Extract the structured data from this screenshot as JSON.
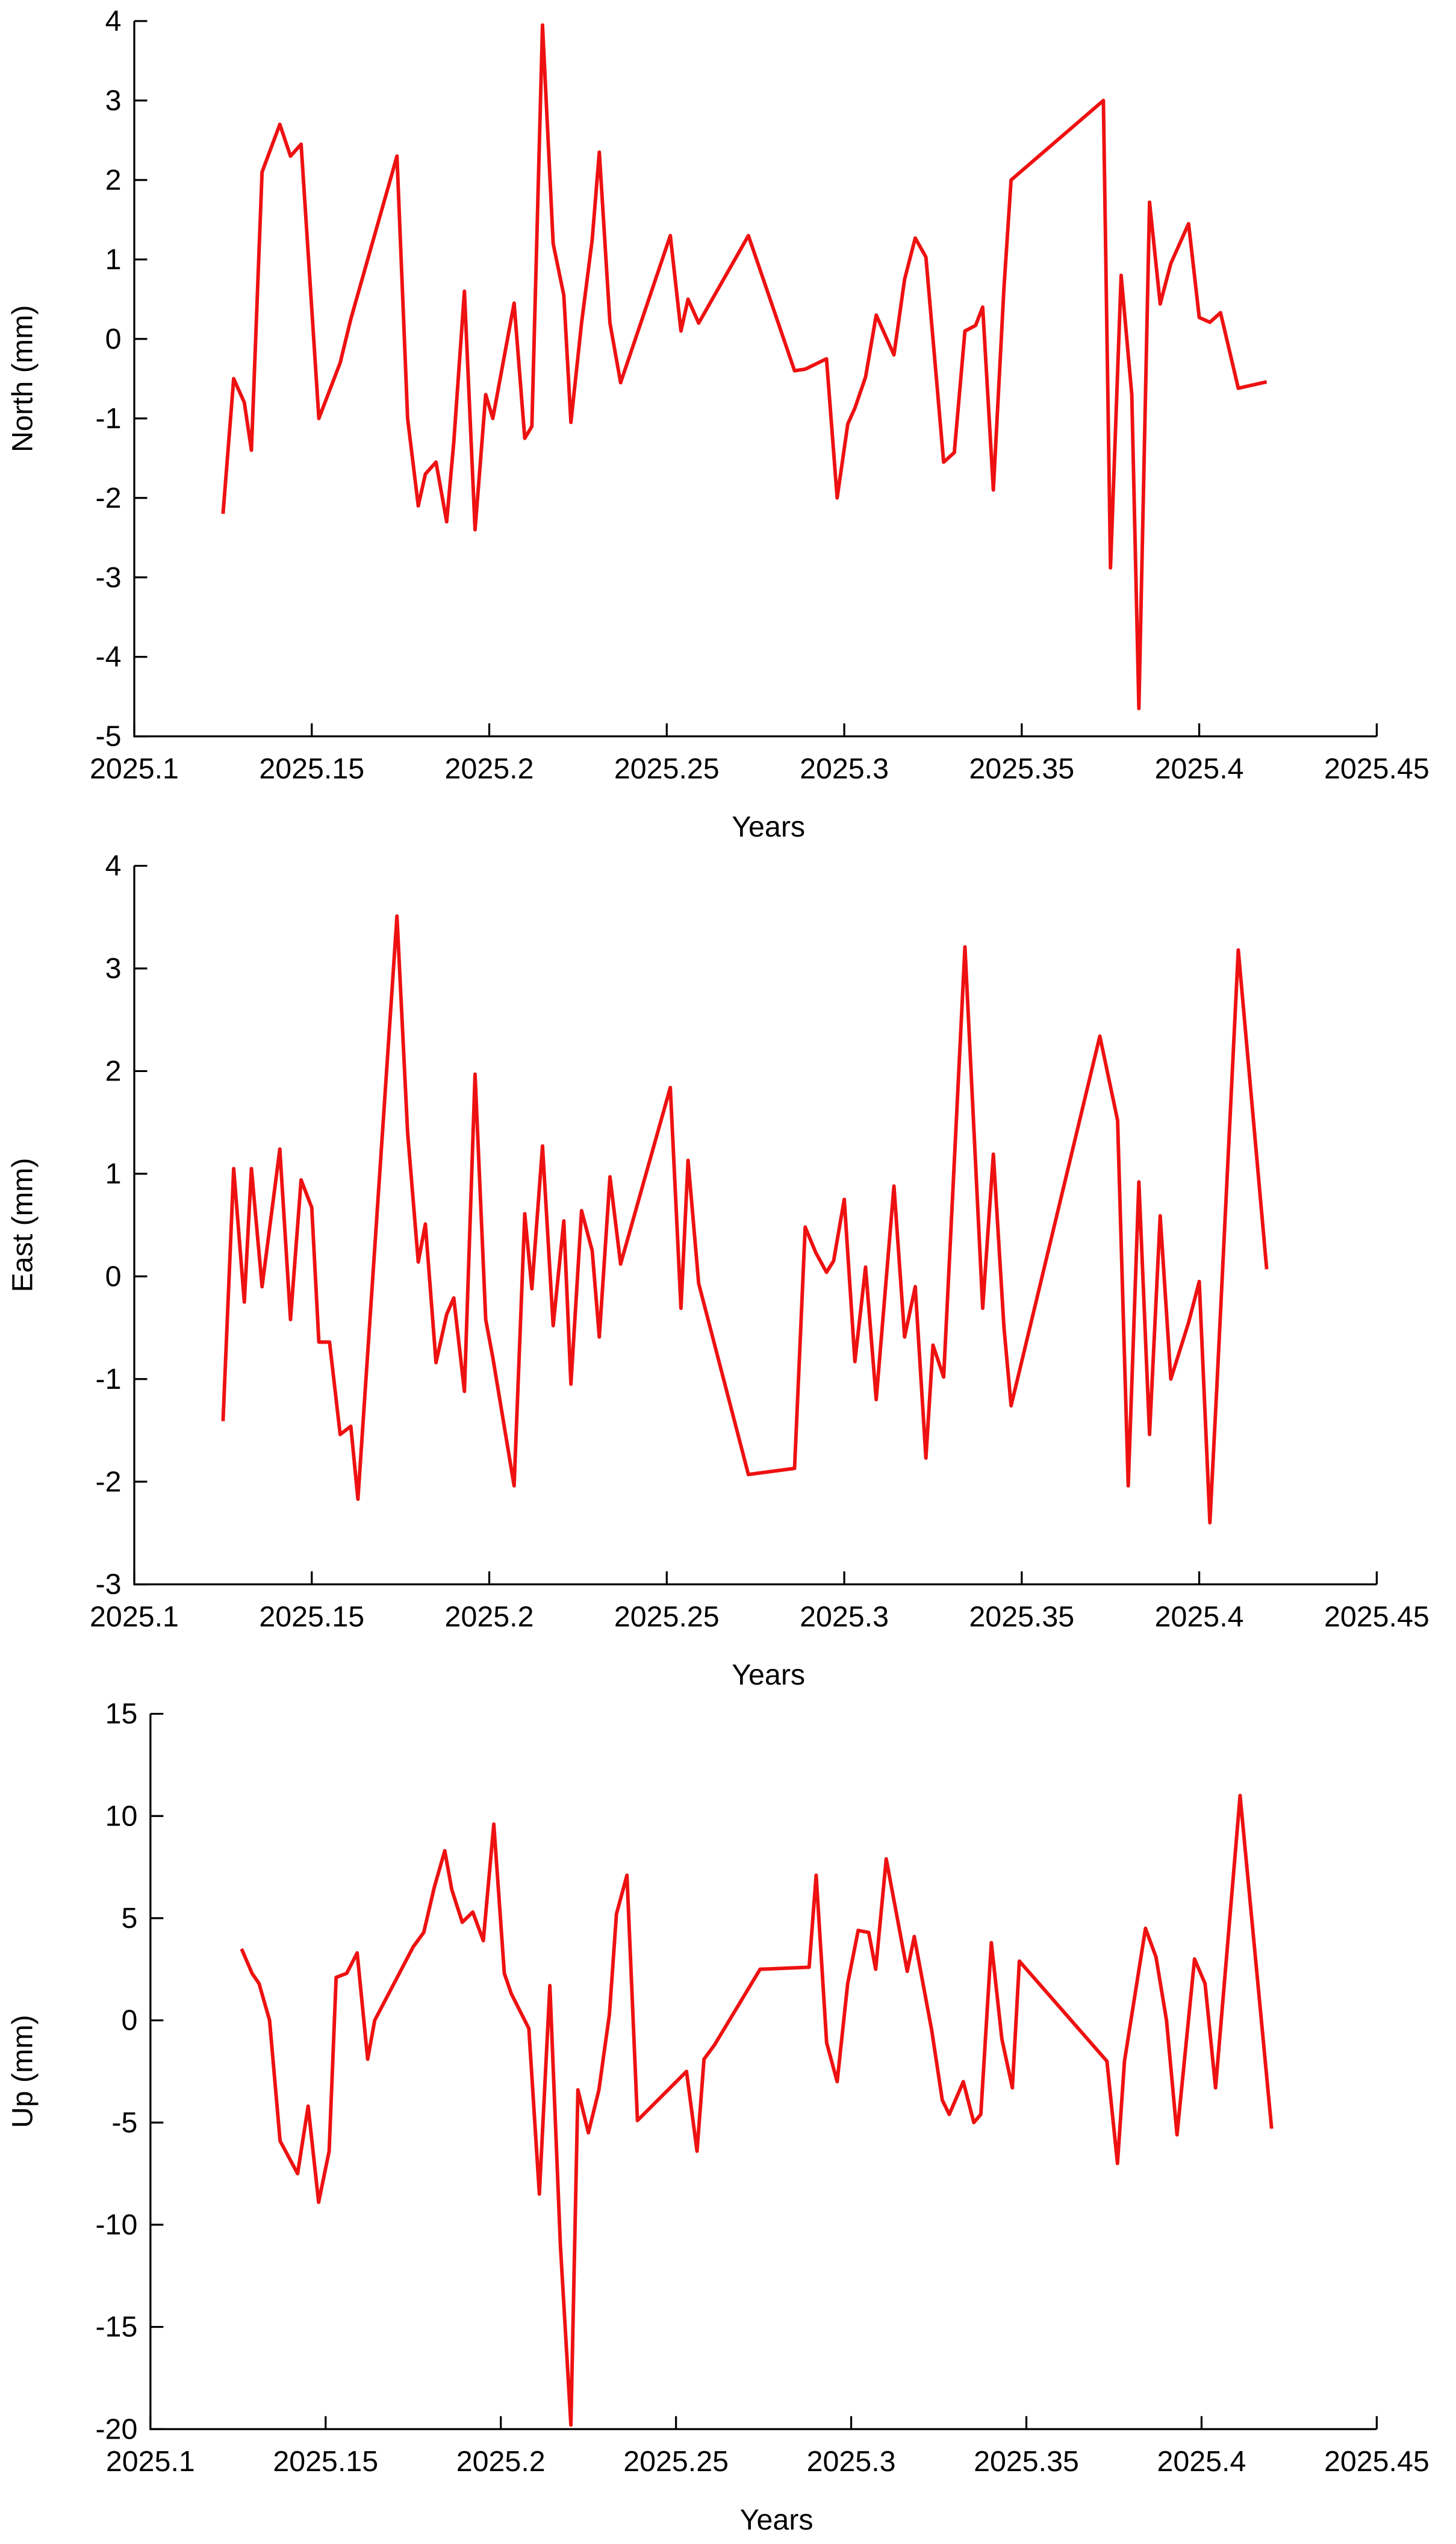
{
  "chart_data": [
    {
      "type": "line",
      "ylabel": "North (mm)",
      "xlabel": "Years",
      "color": "#ee1111",
      "xlim": [
        2025.1,
        2025.45
      ],
      "xticks": [
        2025.1,
        2025.15,
        2025.2,
        2025.25,
        2025.3,
        2025.35,
        2025.4,
        2025.45
      ],
      "ylim": [
        -5,
        4
      ],
      "yticks": [
        -5,
        -4,
        -3,
        -2,
        -1,
        0,
        1,
        2,
        3,
        4
      ],
      "x": [
        2025.125,
        2025.128,
        2025.131,
        2025.133,
        2025.136,
        2025.141,
        2025.144,
        2025.147,
        2025.152,
        2025.158,
        2025.161,
        2025.174,
        2025.177,
        2025.18,
        2025.182,
        2025.185,
        2025.188,
        2025.19,
        2025.193,
        2025.196,
        2025.199,
        2025.201,
        2025.207,
        2025.21,
        2025.212,
        2025.215,
        2025.218,
        2025.221,
        2025.223,
        2025.226,
        2025.229,
        2025.231,
        2025.234,
        2025.237,
        2025.251,
        2025.254,
        2025.256,
        2025.259,
        2025.273,
        2025.286,
        2025.289,
        2025.295,
        2025.298,
        2025.301,
        2025.303,
        2025.306,
        2025.309,
        2025.314,
        2025.317,
        2025.32,
        2025.323,
        2025.328,
        2025.331,
        2025.334,
        2025.337,
        2025.339,
        2025.342,
        2025.345,
        2025.347,
        2025.373,
        2025.375,
        2025.378,
        2025.381,
        2025.383,
        2025.386,
        2025.389,
        2025.392,
        2025.397,
        2025.4,
        2025.403,
        2025.406,
        2025.411,
        2025.419
      ],
      "values": [
        -2.2,
        -0.5,
        -0.8,
        -1.4,
        2.1,
        2.7,
        2.3,
        2.45,
        -1.0,
        -0.3,
        0.25,
        2.3,
        -1.0,
        -2.1,
        -1.7,
        -1.55,
        -2.3,
        -1.3,
        0.6,
        -2.4,
        -0.7,
        -1.0,
        0.45,
        -1.25,
        -1.1,
        3.95,
        1.2,
        0.55,
        -1.05,
        0.2,
        1.25,
        2.35,
        0.2,
        -0.55,
        1.3,
        0.1,
        0.5,
        0.2,
        1.3,
        -0.4,
        -0.38,
        -0.25,
        -2.0,
        -1.07,
        -0.87,
        -0.48,
        0.3,
        -0.2,
        0.75,
        1.27,
        1.03,
        -1.55,
        -1.43,
        0.1,
        0.17,
        0.4,
        -1.9,
        0.65,
        2.0,
        3.0,
        -2.88,
        0.8,
        -0.7,
        -4.65,
        1.72,
        0.44,
        0.95,
        1.45,
        0.27,
        0.21,
        0.33,
        -0.62,
        -0.54
      ]
    },
    {
      "type": "line",
      "ylabel": "East (mm)",
      "xlabel": "Years",
      "color": "#ee1111",
      "xlim": [
        2025.1,
        2025.45
      ],
      "xticks": [
        2025.1,
        2025.15,
        2025.2,
        2025.25,
        2025.3,
        2025.35,
        2025.4,
        2025.45
      ],
      "ylim": [
        -3,
        4
      ],
      "yticks": [
        -3,
        -2,
        -1,
        0,
        1,
        2,
        3,
        4
      ],
      "x": [
        2025.125,
        2025.128,
        2025.131,
        2025.133,
        2025.136,
        2025.141,
        2025.144,
        2025.147,
        2025.15,
        2025.152,
        2025.155,
        2025.158,
        2025.161,
        2025.163,
        2025.174,
        2025.177,
        2025.18,
        2025.182,
        2025.185,
        2025.188,
        2025.19,
        2025.193,
        2025.196,
        2025.199,
        2025.201,
        2025.207,
        2025.21,
        2025.212,
        2025.215,
        2025.218,
        2025.221,
        2025.223,
        2025.226,
        2025.229,
        2025.231,
        2025.234,
        2025.237,
        2025.251,
        2025.254,
        2025.256,
        2025.259,
        2025.273,
        2025.286,
        2025.289,
        2025.292,
        2025.295,
        2025.297,
        2025.3,
        2025.303,
        2025.306,
        2025.309,
        2025.314,
        2025.317,
        2025.32,
        2025.323,
        2025.325,
        2025.328,
        2025.334,
        2025.339,
        2025.342,
        2025.345,
        2025.347,
        2025.372,
        2025.377,
        2025.38,
        2025.383,
        2025.386,
        2025.389,
        2025.392,
        2025.397,
        2025.4,
        2025.403,
        2025.405,
        2025.411,
        2025.419
      ],
      "values": [
        -1.41,
        1.05,
        -0.25,
        1.05,
        -0.1,
        1.24,
        -0.42,
        0.94,
        0.67,
        -0.64,
        -0.64,
        -1.54,
        -1.46,
        -2.17,
        3.51,
        1.4,
        0.14,
        0.51,
        -0.84,
        -0.37,
        -0.21,
        -1.12,
        1.97,
        -0.42,
        -0.79,
        -2.04,
        0.61,
        -0.12,
        1.27,
        -0.48,
        0.54,
        -1.05,
        0.64,
        0.25,
        -0.59,
        0.97,
        0.12,
        1.84,
        -0.31,
        1.13,
        -0.07,
        -1.93,
        -1.87,
        0.48,
        0.23,
        0.04,
        0.15,
        0.75,
        -0.83,
        0.09,
        -1.2,
        0.88,
        -0.59,
        -0.1,
        -1.77,
        -0.67,
        -0.98,
        3.21,
        -0.31,
        1.19,
        -0.5,
        -1.26,
        2.34,
        1.52,
        -2.04,
        0.92,
        -1.54,
        0.59,
        -1.0,
        -0.45,
        -0.05,
        -2.4,
        -1.05,
        3.18,
        0.07
      ]
    },
    {
      "type": "line",
      "ylabel": "Up (mm)",
      "xlabel": "Years",
      "color": "#ee1111",
      "xlim": [
        2025.1,
        2025.45
      ],
      "xticks": [
        2025.1,
        2025.15,
        2025.2,
        2025.25,
        2025.3,
        2025.35,
        2025.4,
        2025.45
      ],
      "ylim": [
        -20,
        15
      ],
      "yticks": [
        -20,
        -15,
        -10,
        -5,
        0,
        5,
        10,
        15
      ],
      "x": [
        2025.126,
        2025.129,
        2025.131,
        2025.134,
        2025.137,
        2025.142,
        2025.145,
        2025.148,
        2025.151,
        2025.153,
        2025.156,
        2025.159,
        2025.162,
        2025.164,
        2025.175,
        2025.178,
        2025.181,
        2025.184,
        2025.186,
        2025.189,
        2025.192,
        2025.195,
        2025.198,
        2025.201,
        2025.203,
        2025.208,
        2025.211,
        2025.214,
        2025.217,
        2025.22,
        2025.222,
        2025.225,
        2025.228,
        2025.231,
        2025.233,
        2025.236,
        2025.239,
        2025.253,
        2025.256,
        2025.258,
        2025.261,
        2025.274,
        2025.288,
        2025.29,
        2025.293,
        2025.296,
        2025.299,
        2025.302,
        2025.305,
        2025.307,
        2025.31,
        2025.316,
        2025.318,
        2025.323,
        2025.326,
        2025.328,
        2025.332,
        2025.335,
        2025.337,
        2025.34,
        2025.343,
        2025.346,
        2025.348,
        2025.373,
        2025.376,
        2025.378,
        2025.384,
        2025.387,
        2025.39,
        2025.393,
        2025.398,
        2025.401,
        2025.404,
        2025.411,
        2025.42
      ],
      "values": [
        3.5,
        2.3,
        1.8,
        0.0,
        -5.9,
        -7.5,
        -4.2,
        -8.9,
        -6.4,
        2.1,
        2.3,
        3.3,
        -1.9,
        0.0,
        3.6,
        4.3,
        6.5,
        8.3,
        6.4,
        4.8,
        5.3,
        3.9,
        9.6,
        2.3,
        1.3,
        -0.4,
        -8.5,
        1.7,
        -11.0,
        -19.8,
        -3.4,
        -5.5,
        -3.4,
        0.3,
        5.2,
        7.1,
        -4.9,
        -2.5,
        -6.4,
        -1.9,
        -1.2,
        2.5,
        2.6,
        7.1,
        -1.1,
        -3.0,
        1.8,
        4.4,
        4.3,
        2.5,
        7.9,
        2.4,
        4.1,
        -0.5,
        -3.9,
        -4.6,
        -3.0,
        -5.0,
        -4.6,
        3.8,
        -0.9,
        -3.3,
        2.9,
        -2.0,
        -7.0,
        -2.0,
        4.5,
        3.1,
        0.0,
        -5.6,
        3.0,
        1.8,
        -3.3,
        11.0,
        -5.3
      ]
    }
  ]
}
